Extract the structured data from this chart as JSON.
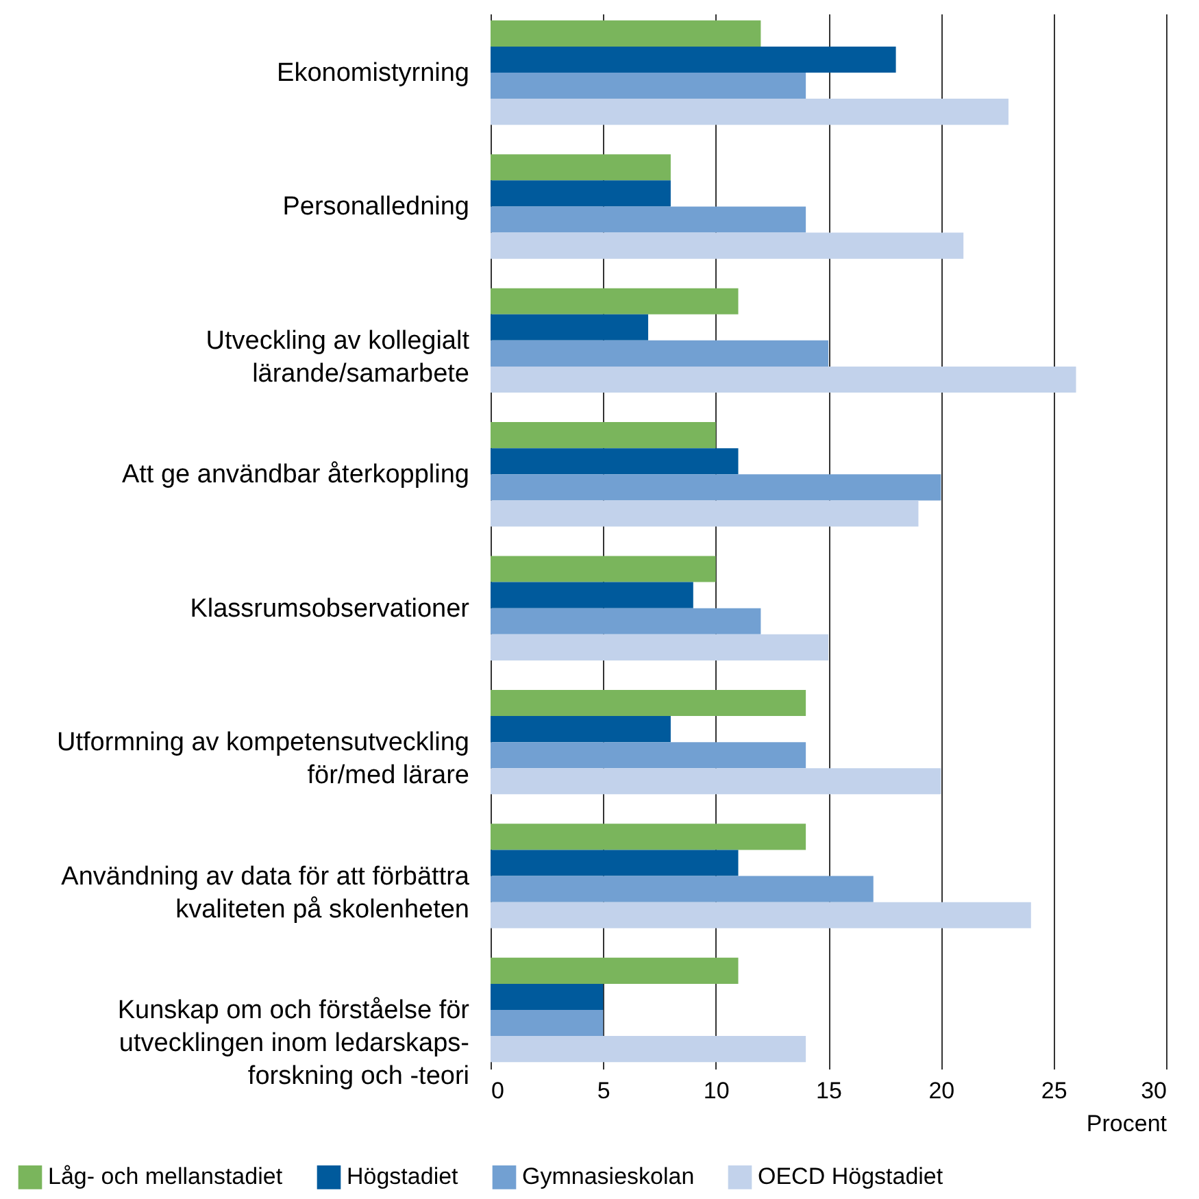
{
  "chart_data": {
    "type": "bar",
    "orientation": "horizontal",
    "xlabel": "Procent",
    "categories": [
      "Ekonomistyrning",
      "Personalledning",
      "Utveckling av kollegialt\nlärande/samarbete",
      "Att ge användbar återkoppling",
      "Klassrumsobservationer",
      "Utformning av kompetensutveckling\nför/med lärare",
      "Användning av data för att förbättra\nkvaliteten på skolenheten",
      "Kunskap om och förståelse för\nutvecklingen inom ledarskaps-\nforskning och -teori"
    ],
    "series": [
      {
        "name": "Låg- och mellanstadiet",
        "color": "#7ab55c",
        "values": [
          12,
          8,
          11,
          10,
          10,
          14,
          14,
          11
        ]
      },
      {
        "name": "Högstadiet",
        "color": "#005a9c",
        "values": [
          18,
          8,
          7,
          11,
          9,
          8,
          11,
          5
        ]
      },
      {
        "name": "Gymnasieskolan",
        "color": "#72a0d2",
        "values": [
          14,
          14,
          15,
          20,
          12,
          14,
          17,
          5
        ]
      },
      {
        "name": "OECD Högstadiet",
        "color": "#c2d2eb",
        "values": [
          23,
          21,
          26,
          19,
          15,
          20,
          24,
          14
        ]
      }
    ],
    "xlim": [
      0,
      30
    ],
    "xticks": [
      0,
      5,
      10,
      15,
      20,
      25,
      30
    ],
    "grid": "x",
    "legend": "bottom"
  }
}
